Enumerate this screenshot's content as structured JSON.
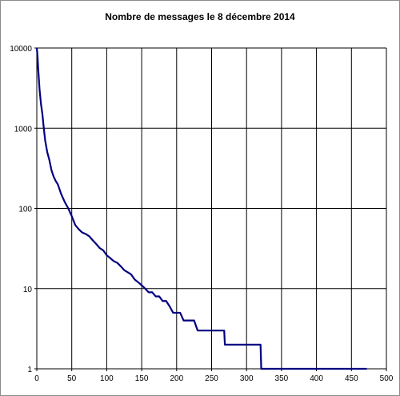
{
  "chart_data": {
    "type": "line",
    "title": "Nombre de messages le 8 décembre 2014",
    "xlabel": "",
    "ylabel": "",
    "x_scale": "linear",
    "y_scale": "log",
    "xlim": [
      0,
      500
    ],
    "ylim": [
      1,
      10000
    ],
    "x_ticks": [
      "0",
      "50",
      "100",
      "150",
      "200",
      "250",
      "300",
      "350",
      "400",
      "450",
      "500"
    ],
    "y_ticks": [
      "1",
      "10",
      "100",
      "1000",
      "10000"
    ],
    "grid": true,
    "legend": "none",
    "colors": {
      "line": "#000080",
      "grid": "#000000",
      "background": "#ffffff"
    },
    "series": [
      {
        "x": [
          0,
          1,
          2,
          4,
          6,
          8,
          10,
          12,
          15,
          18,
          21,
          24,
          27,
          30,
          35,
          40,
          45,
          50,
          55,
          60,
          65,
          70,
          75,
          80,
          85,
          90,
          95,
          100,
          105,
          110,
          115,
          120,
          125,
          130,
          135,
          140,
          145,
          150,
          155,
          160,
          165,
          170,
          175,
          180,
          185,
          190,
          195,
          200,
          205,
          210,
          215,
          220,
          225,
          230,
          240,
          250,
          260,
          268,
          269,
          280,
          290,
          300,
          310,
          320,
          321,
          330,
          350,
          400,
          450,
          472
        ],
        "y": [
          10000,
          8000,
          5500,
          3000,
          2000,
          1500,
          1000,
          700,
          500,
          400,
          300,
          250,
          220,
          200,
          150,
          120,
          100,
          80,
          62,
          55,
          50,
          48,
          45,
          40,
          36,
          32,
          30,
          26,
          24,
          22,
          21,
          19,
          17,
          16,
          15,
          13,
          12,
          11,
          10,
          9,
          9,
          8,
          8,
          7,
          7,
          6,
          5,
          5,
          5,
          4,
          4,
          4,
          4,
          3,
          3,
          3,
          3,
          3,
          2,
          2,
          2,
          2,
          2,
          2,
          1,
          1,
          1,
          1,
          1,
          1
        ]
      }
    ]
  }
}
